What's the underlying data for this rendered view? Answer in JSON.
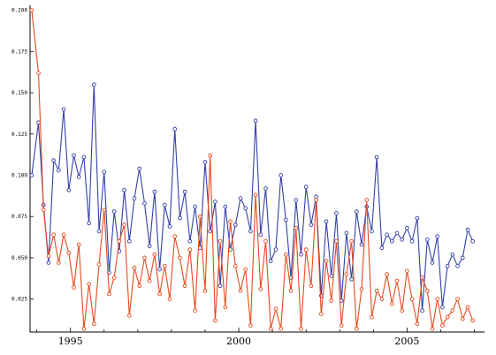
{
  "chart_data": {
    "type": "line",
    "xlim": [
      1993.8,
      2007.3
    ],
    "ylim": [
      0.005,
      0.203
    ],
    "x_ticks": [
      1995,
      2000,
      2005
    ],
    "y_ticks": [
      0.025,
      0.05,
      0.075,
      0.1,
      0.125,
      0.15,
      0.175,
      0.2
    ],
    "x_tick_labels": [
      "1995",
      "2000",
      "2005"
    ],
    "y_tick_labels": [
      "0.025",
      "0.050",
      "0.075",
      "0.100",
      "0.125",
      "0.150",
      "0.175",
      "0.200"
    ],
    "grid": false,
    "series": [
      {
        "color": "#3340a8",
        "x": [
          1993.85,
          1994.05,
          1994.2,
          1994.35,
          1994.5,
          1994.65,
          1994.8,
          1994.95,
          1995.1,
          1995.25,
          1995.4,
          1995.55,
          1995.7,
          1995.85,
          1996.0,
          1996.15,
          1996.3,
          1996.45,
          1996.6,
          1996.75,
          1996.9,
          1997.05,
          1997.2,
          1997.35,
          1997.5,
          1997.65,
          1997.8,
          1997.95,
          1998.1,
          1998.25,
          1998.4,
          1998.55,
          1998.7,
          1998.85,
          1999.0,
          1999.15,
          1999.3,
          1999.45,
          1999.6,
          1999.75,
          1999.9,
          2000.05,
          2000.2,
          2000.35,
          2000.5,
          2000.65,
          2000.8,
          2000.95,
          2001.1,
          2001.25,
          2001.4,
          2001.55,
          2001.7,
          2001.85,
          2002.0,
          2002.15,
          2002.3,
          2002.45,
          2002.6,
          2002.75,
          2002.9,
          2003.05,
          2003.2,
          2003.35,
          2003.5,
          2003.65,
          2003.8,
          2003.95,
          2004.1,
          2004.25,
          2004.4,
          2004.55,
          2004.7,
          2004.85,
          2005.0,
          2005.15,
          2005.3,
          2005.45,
          2005.6,
          2005.75,
          2005.9,
          2006.05,
          2006.2,
          2006.35,
          2006.5,
          2006.65,
          2006.8,
          2006.95
        ],
        "y": [
          0.1,
          0.132,
          0.082,
          0.047,
          0.109,
          0.103,
          0.14,
          0.091,
          0.112,
          0.099,
          0.111,
          0.071,
          0.155,
          0.066,
          0.102,
          0.041,
          0.078,
          0.054,
          0.091,
          0.06,
          0.086,
          0.104,
          0.083,
          0.057,
          0.09,
          0.043,
          0.082,
          0.069,
          0.128,
          0.074,
          0.09,
          0.06,
          0.081,
          0.056,
          0.108,
          0.066,
          0.084,
          0.033,
          0.081,
          0.055,
          0.07,
          0.086,
          0.08,
          0.066,
          0.133,
          0.064,
          0.092,
          0.048,
          0.055,
          0.1,
          0.073,
          0.038,
          0.085,
          0.052,
          0.093,
          0.07,
          0.087,
          0.027,
          0.072,
          0.039,
          0.077,
          0.024,
          0.065,
          0.037,
          0.078,
          0.058,
          0.081,
          0.066,
          0.111,
          0.056,
          0.064,
          0.06,
          0.065,
          0.061,
          0.068,
          0.06,
          0.074,
          0.018,
          0.061,
          0.047,
          0.063,
          0.02,
          0.045,
          0.052,
          0.045,
          0.05,
          0.067,
          0.06
        ]
      },
      {
        "color": "#e8491d",
        "x": [
          1993.85,
          1994.05,
          1994.2,
          1994.35,
          1994.5,
          1994.65,
          1994.8,
          1994.95,
          1995.1,
          1995.25,
          1995.4,
          1995.55,
          1995.7,
          1995.85,
          1996.0,
          1996.15,
          1996.3,
          1996.45,
          1996.6,
          1996.75,
          1996.9,
          1997.05,
          1997.2,
          1997.35,
          1997.5,
          1997.65,
          1997.8,
          1997.95,
          1998.1,
          1998.25,
          1998.4,
          1998.55,
          1998.7,
          1998.85,
          1999.0,
          1999.15,
          1999.3,
          1999.45,
          1999.6,
          1999.75,
          1999.9,
          2000.05,
          2000.2,
          2000.35,
          2000.5,
          2000.65,
          2000.8,
          2000.95,
          2001.1,
          2001.25,
          2001.4,
          2001.55,
          2001.7,
          2001.85,
          2002.0,
          2002.15,
          2002.3,
          2002.45,
          2002.6,
          2002.75,
          2002.9,
          2003.05,
          2003.2,
          2003.35,
          2003.5,
          2003.65,
          2003.8,
          2003.95,
          2004.1,
          2004.25,
          2004.4,
          2004.55,
          2004.7,
          2004.85,
          2005.0,
          2005.15,
          2005.3,
          2005.45,
          2005.6,
          2005.75,
          2005.9,
          2006.05,
          2006.2,
          2006.35,
          2006.5,
          2006.65,
          2006.8,
          2006.95
        ],
        "y": [
          0.2,
          0.162,
          0.079,
          0.051,
          0.064,
          0.047,
          0.064,
          0.053,
          0.032,
          0.058,
          0.007,
          0.034,
          0.01,
          0.046,
          0.079,
          0.028,
          0.038,
          0.06,
          0.07,
          0.015,
          0.044,
          0.033,
          0.05,
          0.036,
          0.052,
          0.028,
          0.045,
          0.025,
          0.063,
          0.05,
          0.033,
          0.055,
          0.018,
          0.075,
          0.03,
          0.112,
          0.012,
          0.06,
          0.02,
          0.072,
          0.045,
          0.03,
          0.043,
          0.009,
          0.088,
          0.031,
          0.06,
          0.007,
          0.019,
          0.007,
          0.052,
          0.03,
          0.068,
          0.007,
          0.055,
          0.033,
          0.085,
          0.016,
          0.048,
          0.024,
          0.06,
          0.009,
          0.04,
          0.06,
          0.007,
          0.031,
          0.085,
          0.014,
          0.03,
          0.025,
          0.04,
          0.022,
          0.036,
          0.018,
          0.042,
          0.025,
          0.01,
          0.038,
          0.03,
          0.007,
          0.025,
          0.009,
          0.014,
          0.018,
          0.025,
          0.013,
          0.02,
          0.012
        ]
      }
    ]
  }
}
